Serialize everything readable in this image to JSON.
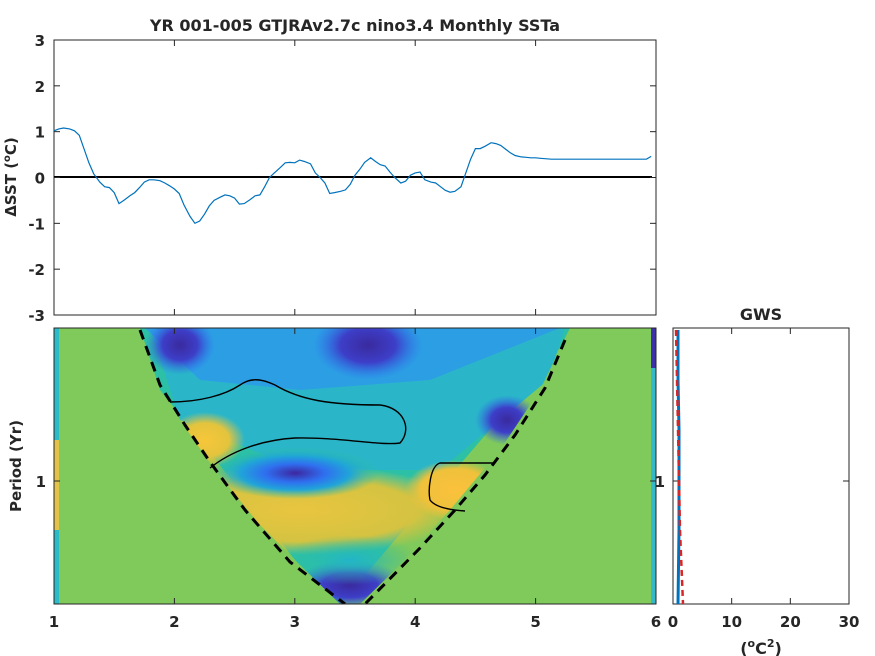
{
  "chart_data": [
    {
      "type": "line",
      "title": "YR 001-005 GTJRAv2.7c nino3.4 Monthly SSTa",
      "xlabel": "",
      "ylabel": "ΔSST (",
      "ylabel_sup": "o",
      "ylabel_unit": "C)",
      "xlim": [
        1,
        6
      ],
      "ylim": [
        -3,
        3
      ],
      "xticks": [
        1,
        2,
        3,
        4,
        5,
        6
      ],
      "yticks": [
        -3,
        -2,
        -1,
        0,
        1,
        2,
        3
      ],
      "zero_line": true,
      "grid": false,
      "series": [
        {
          "color": "#0072bd",
          "x": [
            1.0,
            1.04,
            1.08,
            1.13,
            1.17,
            1.21,
            1.25,
            1.29,
            1.33,
            1.38,
            1.42,
            1.46,
            1.5,
            1.54,
            1.58,
            1.63,
            1.67,
            1.71,
            1.75,
            1.79,
            1.83,
            1.88,
            1.92,
            1.96,
            2.0,
            2.04,
            2.08,
            2.13,
            2.17,
            2.21,
            2.25,
            2.29,
            2.33,
            2.38,
            2.42,
            2.46,
            2.5,
            2.54,
            2.58,
            2.63,
            2.67,
            2.71,
            2.75,
            2.79,
            2.83,
            2.88,
            2.92,
            2.96,
            3.0,
            3.04,
            3.08,
            3.13,
            3.17,
            3.21,
            3.25,
            3.29,
            3.33,
            3.38,
            3.42,
            3.46,
            3.5,
            3.54,
            3.58,
            3.63,
            3.67,
            3.71,
            3.75,
            3.79,
            3.83,
            3.88,
            3.92,
            3.96,
            4.0,
            4.04,
            4.08,
            4.13,
            4.17,
            4.21,
            4.25,
            4.29,
            4.33,
            4.38,
            4.42,
            4.46,
            4.5,
            4.54,
            4.58,
            4.63,
            4.67,
            4.71,
            4.75,
            4.79,
            4.83,
            4.88,
            4.92,
            4.96,
            5.0,
            5.04,
            5.08,
            5.13,
            5.17,
            5.21,
            5.25,
            5.29,
            5.33,
            5.38,
            5.42,
            5.46,
            5.5,
            5.54,
            5.58,
            5.63,
            5.67,
            5.71,
            5.75,
            5.79,
            5.83,
            5.88,
            5.92,
            5.96
          ],
          "y": [
            1.02,
            1.06,
            1.08,
            1.06,
            1.02,
            0.92,
            0.62,
            0.32,
            0.08,
            -0.1,
            -0.2,
            -0.22,
            -0.33,
            -0.57,
            -0.5,
            -0.4,
            -0.33,
            -0.22,
            -0.1,
            -0.05,
            -0.05,
            -0.07,
            -0.12,
            -0.18,
            -0.25,
            -0.35,
            -0.6,
            -0.85,
            -1.0,
            -0.95,
            -0.8,
            -0.62,
            -0.5,
            -0.43,
            -0.38,
            -0.4,
            -0.45,
            -0.58,
            -0.57,
            -0.48,
            -0.4,
            -0.38,
            -0.2,
            0.0,
            0.1,
            0.22,
            0.32,
            0.33,
            0.32,
            0.38,
            0.35,
            0.3,
            0.1,
            0.0,
            -0.12,
            -0.35,
            -0.33,
            -0.3,
            -0.27,
            -0.15,
            0.05,
            0.18,
            0.33,
            0.43,
            0.35,
            0.28,
            0.25,
            0.12,
            0.0,
            -0.12,
            -0.08,
            0.05,
            0.1,
            0.12,
            -0.05,
            -0.1,
            -0.12,
            -0.2,
            -0.28,
            -0.32,
            -0.3,
            -0.2,
            0.1,
            0.4,
            0.63,
            0.63,
            0.68,
            0.76,
            0.74,
            0.7,
            0.62,
            0.54,
            0.48,
            0.45,
            0.44,
            0.43,
            0.43,
            0.42,
            0.41,
            0.4,
            0.4,
            0.4,
            0.4,
            0.4,
            0.4,
            0.4,
            0.4,
            0.4,
            0.4,
            0.4,
            0.4,
            0.4,
            0.4,
            0.4,
            0.4,
            0.4,
            0.4,
            0.4,
            0.4,
            0.46
          ]
        }
      ]
    },
    {
      "type": "heatmap",
      "title": "",
      "xlabel": "",
      "ylabel": "Period (Yr)",
      "xlim": [
        1,
        6
      ],
      "xticks": [
        1,
        2,
        3,
        4,
        5,
        6
      ],
      "yticks": [
        1
      ],
      "colormap": "parula",
      "cone_of_influence": "dashed black",
      "significance_contour": "black"
    },
    {
      "type": "line",
      "title": "GWS",
      "xlabel": "(",
      "xlabel_sup_o": "o",
      "xlabel_mid": "C",
      "xlabel_sup_2": "2",
      "xlabel_end": ")",
      "xlim": [
        0,
        30
      ],
      "xticks": [
        0,
        10,
        20,
        30
      ],
      "yticks": [
        1
      ],
      "series": [
        {
          "color": "#0072bd",
          "style": "solid",
          "x": [
            0.9,
            1.0,
            1.1,
            1.2,
            1.0
          ],
          "period": [
            0.4,
            0.7,
            1.0,
            1.5,
            2.5
          ]
        },
        {
          "color": "#d62728",
          "style": "dashed",
          "x": [
            1.8,
            1.5,
            1.3,
            1.1,
            0.8
          ],
          "period": [
            0.4,
            0.7,
            1.0,
            1.5,
            2.5
          ]
        }
      ]
    }
  ]
}
